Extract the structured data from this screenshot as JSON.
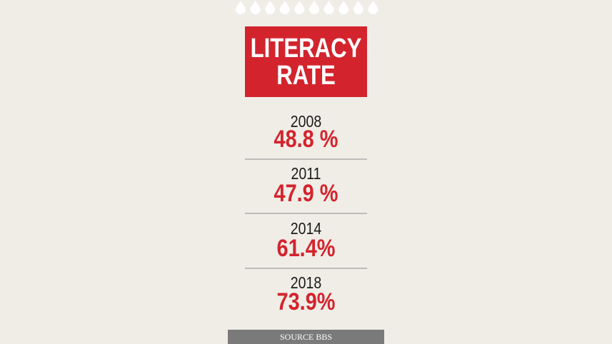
{
  "header": {
    "title_lines": [
      "LITERACY",
      "RATE"
    ]
  },
  "rows": [
    {
      "year": "2008",
      "rate": "48.8 %"
    },
    {
      "year": "2011",
      "rate": "47.9 %"
    },
    {
      "year": "2014",
      "rate": "61.4%"
    },
    {
      "year": "2018",
      "rate": "73.9%"
    }
  ],
  "source": "SOURCE BBS"
}
